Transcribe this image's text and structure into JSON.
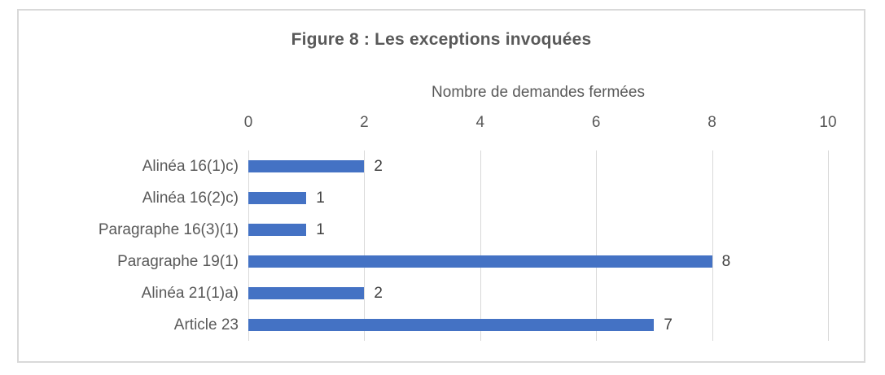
{
  "chart_data": {
    "type": "bar",
    "orientation": "horizontal",
    "title": "Figure 8 : Les exceptions invoquées",
    "axis_title": "Nombre de demandes fermées",
    "categories": [
      "Alinéa 16(1)c)",
      "Alinéa 16(2)c)",
      "Paragraphe 16(3)(1)",
      "Paragraphe 19(1)",
      "Alinéa 21(1)a)",
      "Article 23"
    ],
    "values": [
      2,
      1,
      1,
      8,
      2,
      7
    ],
    "xlim": [
      0,
      10
    ],
    "xticks": [
      "0",
      "2",
      "4",
      "6",
      "8",
      "10"
    ],
    "grid": true,
    "legend": "none",
    "data_labels": true,
    "axis_position": "top",
    "colors": {
      "bar": "#4472C4",
      "gridline": "#D9D9D9",
      "frame_border": "#D9D9D9",
      "title_text": "#595959",
      "axis_text": "#595959",
      "category_text": "#595959",
      "value_label_text": "#404040",
      "background": "#FFFFFF"
    }
  }
}
